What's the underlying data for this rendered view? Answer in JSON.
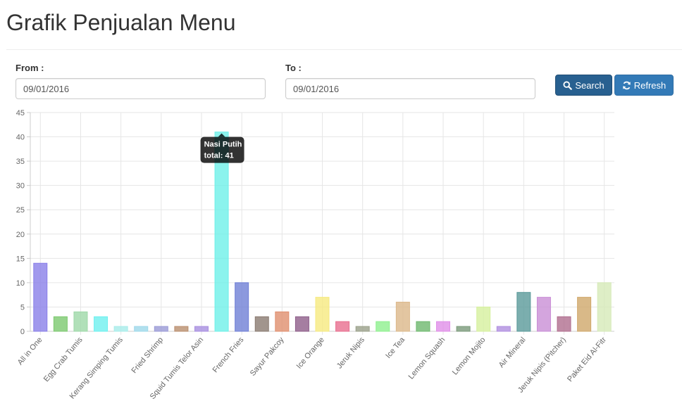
{
  "page": {
    "title": "Grafik Penjualan Menu"
  },
  "filters": {
    "from_label": "From :",
    "from_value": "09/01/2016",
    "to_label": "To :",
    "to_value": "09/01/2016"
  },
  "buttons": {
    "search_label": "Search",
    "search_icon": "search-icon",
    "refresh_label": "Refresh",
    "refresh_icon": "refresh-icon"
  },
  "tooltip": {
    "title": "Nasi Putih",
    "body": "total: 41"
  },
  "chart_data": {
    "type": "bar",
    "categories": [
      "All in One",
      "",
      "Egg Crab Tumis",
      "",
      "Kerang Simping Tumis",
      "",
      "Fried Shrimp",
      "",
      "Squid Tumis Telor Asin",
      "Nasi Putih",
      "French Fries",
      "",
      "Sayur Pakcoy",
      "",
      "Ice Orange",
      "",
      "Jeruk Nipis",
      "",
      "Ice Tea",
      "",
      "Lemon Squash",
      "",
      "Lemon Mojito",
      "",
      "Air Mineral",
      "",
      "Jeruk Nipis (Pitcher)",
      "",
      "Paket Eid Al-Fitr"
    ],
    "values": [
      14,
      3,
      4,
      3,
      1,
      1,
      1,
      1,
      1,
      41,
      10,
      3,
      4,
      3,
      7,
      2,
      1,
      2,
      6,
      2,
      2,
      1,
      5,
      1,
      8,
      7,
      3,
      7,
      10
    ],
    "colors": [
      "#8a7fe8",
      "#7cc96f",
      "#9ed8a8",
      "#6ef0ef",
      "#a8ecea",
      "#9ed8ea",
      "#9a9ad6",
      "#b98e6e",
      "#a88ee0",
      "#6ef0e8",
      "#6f7fd6",
      "#8a7a70",
      "#e08e6e",
      "#8e5e8a",
      "#f6ea80",
      "#e86e8e",
      "#9aa08a",
      "#8ef08e",
      "#dcb88a",
      "#6eb86e",
      "#e08ee8",
      "#7a9a7a",
      "#d6f09e",
      "#b08ee0",
      "#5a9a9a",
      "#c98ed6",
      "#b06e8e",
      "#d0a86a",
      "#d6eab8"
    ],
    "ylim": [
      0,
      45
    ],
    "yticks": [
      0,
      5,
      10,
      15,
      20,
      25,
      30,
      35,
      40,
      45
    ],
    "title": "",
    "xlabel": "",
    "ylabel": "",
    "grid": true,
    "legend": "none"
  }
}
